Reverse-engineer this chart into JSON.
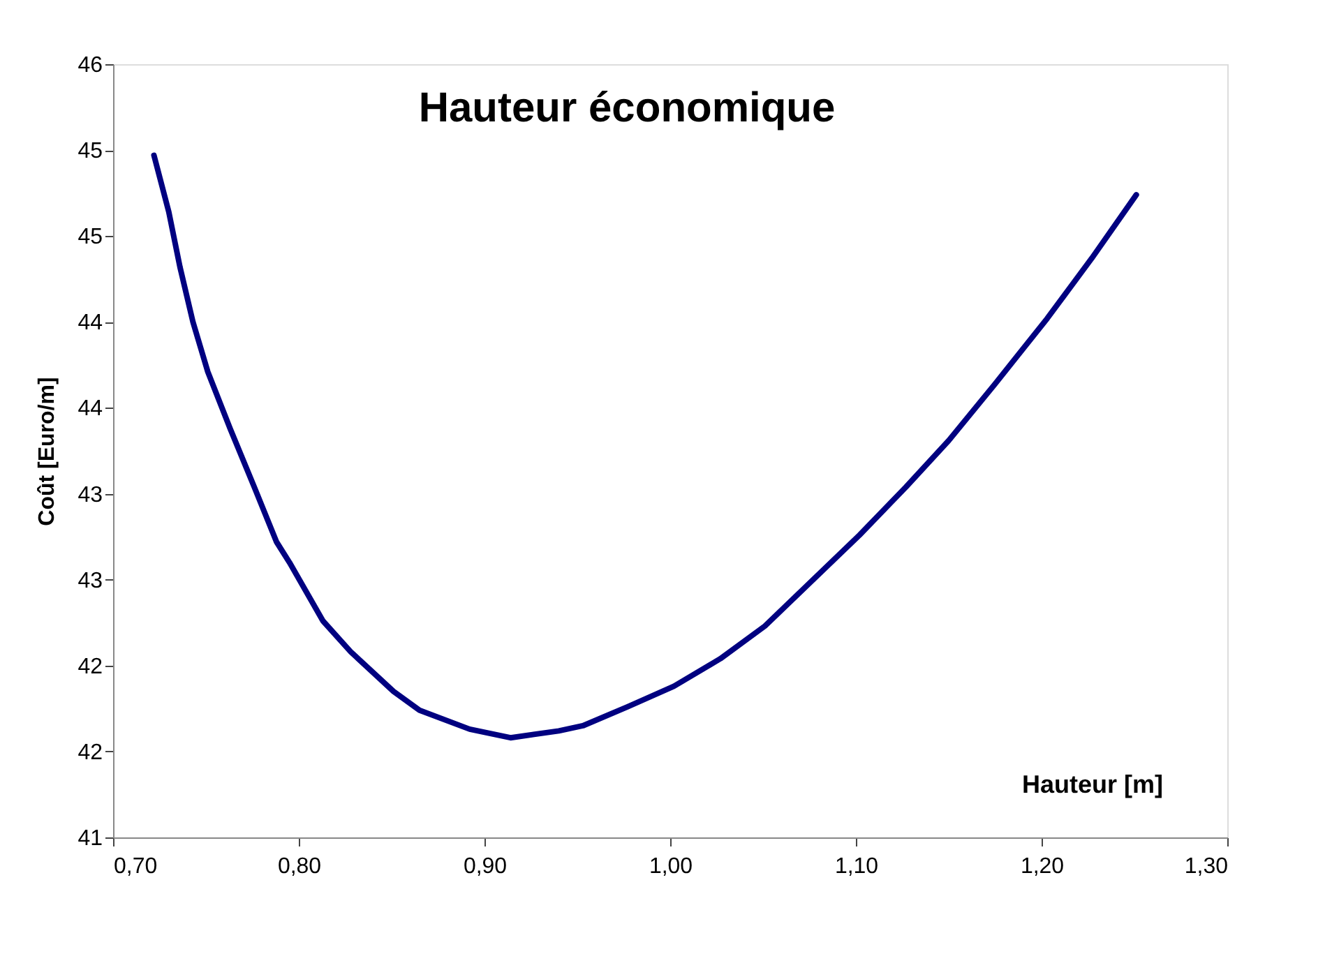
{
  "chart_data": {
    "type": "line",
    "title": "Hauteur économique",
    "xlabel": "Hauteur [m]",
    "ylabel": "Coût [Euro/m]",
    "x": [
      0.722,
      0.73,
      0.736,
      0.743,
      0.751,
      0.763,
      0.776,
      0.788,
      0.795,
      0.813,
      0.828,
      0.851,
      0.865,
      0.892,
      0.914,
      0.94,
      0.953,
      0.977,
      1.002,
      1.027,
      1.051,
      1.102,
      1.127,
      1.15,
      1.175,
      1.203,
      1.227,
      1.251
    ],
    "series": [
      {
        "color": "#000080",
        "values": [
          44.97,
          44.64,
          44.32,
          44.0,
          43.71,
          43.38,
          43.04,
          42.72,
          42.6,
          42.26,
          42.08,
          41.85,
          41.74,
          41.63,
          41.58,
          41.62,
          41.65,
          41.76,
          41.88,
          42.04,
          42.23,
          42.76,
          43.04,
          43.31,
          43.64,
          44.02,
          44.37,
          44.74
        ]
      }
    ],
    "xlim": [
      0.7,
      1.3
    ],
    "xticks": [
      {
        "value": 0.7,
        "label": "0,70"
      },
      {
        "value": 0.8,
        "label": "0,80"
      },
      {
        "value": 0.9,
        "label": "0,90"
      },
      {
        "value": 1.0,
        "label": "1,00"
      },
      {
        "value": 1.1,
        "label": "1,10"
      },
      {
        "value": 1.2,
        "label": "1,20"
      },
      {
        "value": 1.3,
        "label": "1,30"
      }
    ],
    "ylim": [
      41,
      45.5
    ],
    "yticks": [
      41,
      {
        "value": 41.5,
        "label": "42"
      },
      42,
      {
        "value": 42.5,
        "label": "43"
      },
      43,
      {
        "value": 43.5,
        "label": "44"
      },
      44,
      {
        "value": 44.5,
        "label": "45"
      },
      45,
      {
        "value": 45.5,
        "label": "46"
      }
    ],
    "grid": false,
    "marker": "none",
    "line_style": "solid"
  }
}
